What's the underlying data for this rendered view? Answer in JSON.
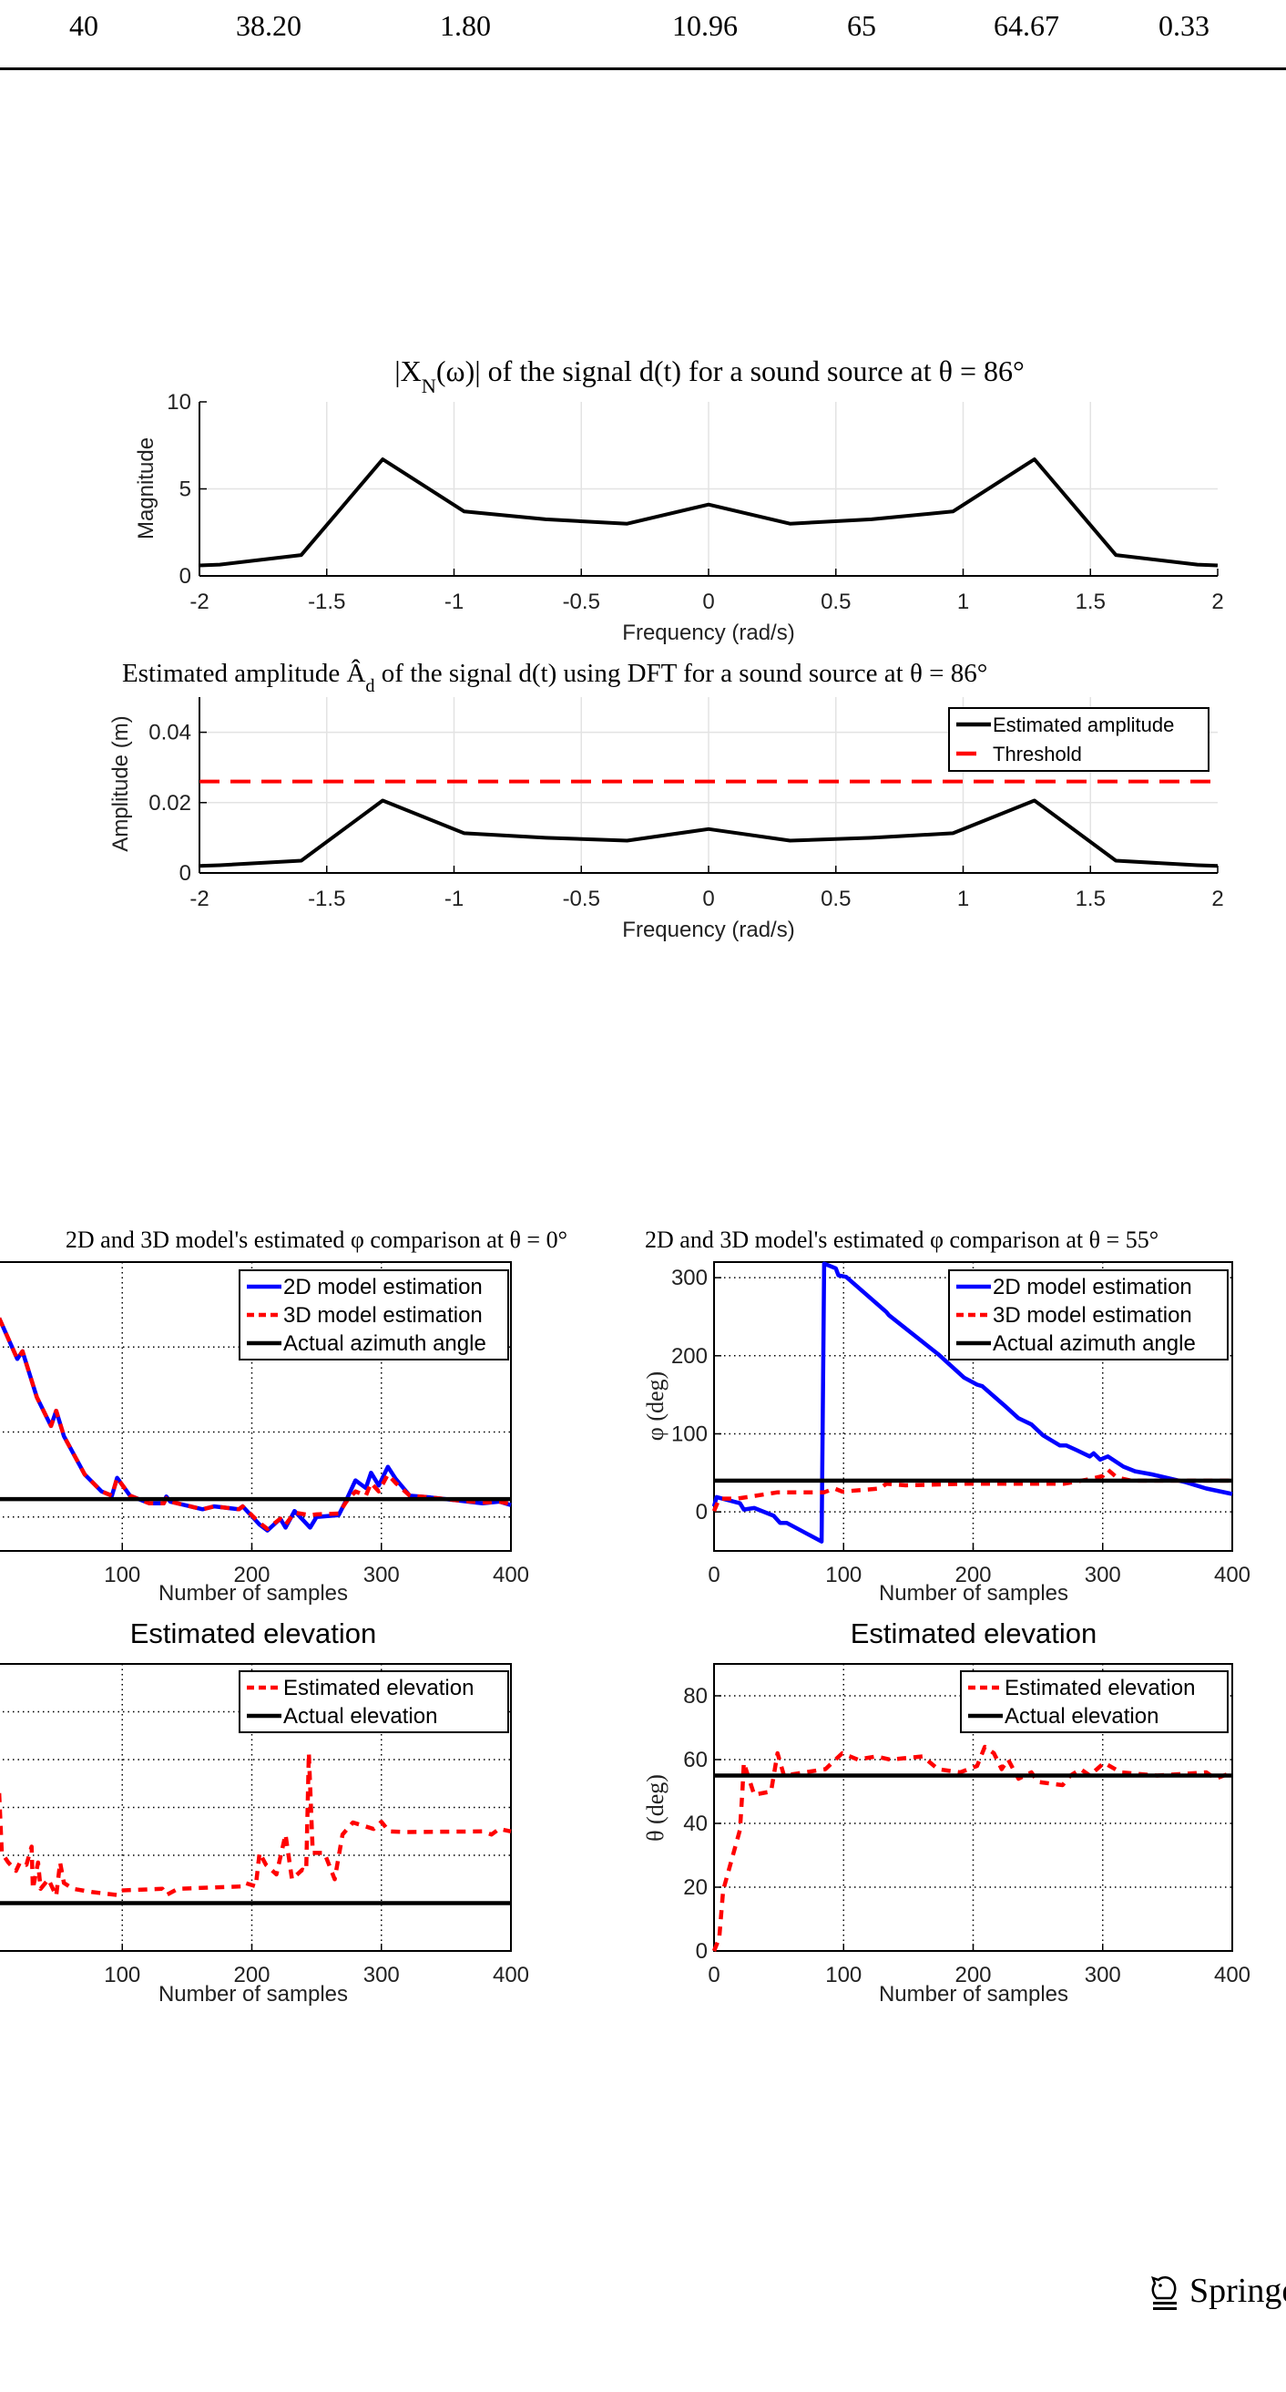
{
  "table": {
    "row": [
      "40",
      "38.20",
      "1.80",
      "10.96",
      "65",
      "64.67",
      "0.33"
    ]
  },
  "publisher": {
    "logo_text": "Springer"
  },
  "chart_data": [
    {
      "type": "line",
      "title": "|X_N(ω)| of the signal d(t) for a sound source at θ = 86°",
      "xlabel": "Frequency (rad/s)",
      "ylabel": "Magnitude",
      "xlim": [
        -2,
        2
      ],
      "ylim": [
        0,
        10
      ],
      "xticks": [
        "-2",
        "-1.5",
        "-1",
        "-0.5",
        "0",
        "0.5",
        "1",
        "1.5",
        "2"
      ],
      "yticks": [
        "0",
        "5",
        "10"
      ],
      "grid": true,
      "legend": null,
      "series": [
        {
          "name": "Magnitude",
          "color": "#000000",
          "style": "solid",
          "x": [
            -2,
            -1.92,
            -1.6,
            -1.28,
            -0.96,
            -0.64,
            -0.32,
            0,
            0.32,
            0.64,
            0.96,
            1.28,
            1.6,
            1.92,
            2
          ],
          "y": [
            0.6,
            0.65,
            1.2,
            6.7,
            3.7,
            3.25,
            3.0,
            4.1,
            3.0,
            3.25,
            3.7,
            6.7,
            1.2,
            0.65,
            0.6
          ]
        }
      ]
    },
    {
      "type": "line",
      "title": "Estimated amplitude Â_d of the signal d(t) using DFT for a sound source at θ = 86°",
      "xlabel": "Frequency (rad/s)",
      "ylabel": "Amplitude (m)",
      "xlim": [
        -2,
        2
      ],
      "ylim": [
        0,
        0.05
      ],
      "xticks": [
        "-2",
        "-1.5",
        "-1",
        "-0.5",
        "0",
        "0.5",
        "1",
        "1.5",
        "2"
      ],
      "yticks": [
        "0",
        "0.02",
        "0.04"
      ],
      "grid": true,
      "legend": "top-right",
      "series": [
        {
          "name": "Estimated amplitude",
          "color": "#000000",
          "style": "solid",
          "x": [
            -2,
            -1.92,
            -1.6,
            -1.28,
            -0.96,
            -0.64,
            -0.32,
            0,
            0.32,
            0.64,
            0.96,
            1.28,
            1.6,
            1.92,
            2
          ],
          "y": [
            0.002,
            0.0022,
            0.0035,
            0.0206,
            0.0113,
            0.01,
            0.0092,
            0.0125,
            0.0092,
            0.01,
            0.0113,
            0.0206,
            0.0035,
            0.0022,
            0.002
          ]
        },
        {
          "name": "Threshold",
          "color": "#ff0000",
          "style": "dashed",
          "x": [
            -2,
            2
          ],
          "y": [
            0.026,
            0.026
          ]
        }
      ]
    },
    {
      "type": "line",
      "title": "2D and 3D model's estimated φ comparison at θ = 0°",
      "xlabel": "Number of samples",
      "ylabel": "",
      "xlim": [
        0,
        400
      ],
      "ylim": [
        -40,
        300
      ],
      "xticks": [
        "100",
        "200",
        "300",
        "400"
      ],
      "ygrid": [
        0,
        100,
        200
      ],
      "grid": true,
      "legend": "top-right",
      "series": [
        {
          "name": "2D model estimation",
          "color": "#0000ff",
          "style": "solid",
          "x": [
            5,
            19,
            23,
            34,
            45,
            49,
            55,
            71,
            84,
            92,
            96,
            106,
            121,
            132,
            134,
            137,
            162,
            171,
            190,
            193,
            206,
            212,
            222,
            226,
            233,
            245,
            250,
            267,
            273,
            280,
            288,
            292,
            298,
            305,
            311,
            322,
            338,
            356,
            378,
            391,
            400
          ],
          "y": [
            234,
            186,
            195,
            141,
            107,
            125,
            95,
            50,
            30,
            25,
            46,
            25,
            16,
            16,
            24,
            18,
            9,
            12.5,
            9,
            12.5,
            -9,
            -16,
            -2,
            -12.5,
            7,
            -12.5,
            0,
            2,
            20,
            43,
            34,
            52,
            37,
            59,
            45,
            25,
            23,
            20,
            16,
            18,
            14
          ]
        },
        {
          "name": "3D model estimation",
          "color": "#ff0000",
          "style": "dashed",
          "x": [
            5,
            19,
            23,
            34,
            45,
            49,
            55,
            71,
            84,
            92,
            96,
            106,
            121,
            132,
            134,
            137,
            162,
            171,
            190,
            193,
            206,
            212,
            222,
            226,
            233,
            245,
            250,
            267,
            273,
            280,
            288,
            292,
            298,
            305,
            311,
            322,
            338,
            356,
            378,
            391,
            400
          ],
          "y": [
            234,
            186,
            195,
            141,
            107,
            125,
            95,
            50,
            30,
            25,
            46,
            25,
            16,
            16,
            22,
            18,
            9,
            12.5,
            9,
            12.5,
            -7,
            -14,
            -2,
            -9,
            5,
            2,
            3,
            4,
            18,
            30,
            25,
            40,
            30,
            50,
            40,
            25,
            23,
            20,
            17,
            18,
            15
          ]
        },
        {
          "name": "Actual azimuth angle",
          "color": "#000000",
          "style": "solid",
          "x": [
            0,
            400
          ],
          "y": [
            21,
            21
          ]
        }
      ]
    },
    {
      "type": "line",
      "title": "2D and 3D model's estimated φ comparison at θ = 55°",
      "xlabel": "Number of samples",
      "ylabel": "φ (deg)",
      "xlim": [
        0,
        400
      ],
      "ylim": [
        -50,
        320
      ],
      "xticks": [
        "0",
        "100",
        "200",
        "300",
        "400"
      ],
      "yticks": [
        "0",
        "100",
        "200",
        "300"
      ],
      "ygrid": [
        0,
        100,
        200,
        300
      ],
      "grid": true,
      "legend": "top-right",
      "series": [
        {
          "name": "2D model estimation",
          "color": "#0000ff",
          "style": "solid",
          "x": [
            0,
            2,
            20,
            23,
            31,
            46,
            51,
            56,
            83,
            85,
            94,
            96,
            102,
            133,
            135,
            173,
            193,
            203,
            207,
            225,
            235,
            245,
            254,
            267,
            272,
            280,
            290,
            293,
            298,
            304,
            316,
            325,
            338,
            364,
            380,
            400
          ],
          "y": [
            7,
            19,
            11,
            3,
            5,
            -5,
            -14,
            -14,
            -38,
            318,
            312,
            303,
            301,
            256,
            252,
            202,
            172,
            163,
            161,
            135,
            120,
            112,
            98,
            85,
            85,
            79,
            71,
            75,
            67,
            71,
            58,
            52,
            48,
            38,
            30,
            23
          ]
        },
        {
          "name": "3D model estimation",
          "color": "#ff0000",
          "style": "dashed",
          "x": [
            0,
            4,
            18,
            49,
            85,
            93,
            99,
            128,
            133,
            148,
            193,
            270,
            290,
            300,
            304,
            311,
            322,
            400
          ],
          "y": [
            1,
            17,
            17,
            25,
            25,
            30,
            26,
            30,
            36,
            34,
            36,
            36,
            42,
            46,
            54,
            44,
            40,
            40
          ]
        },
        {
          "name": "Actual azimuth angle",
          "color": "#000000",
          "style": "solid",
          "x": [
            0,
            400
          ],
          "y": [
            40,
            40
          ]
        }
      ]
    },
    {
      "type": "line",
      "title": "Estimated elevation",
      "xlabel": "Number of samples",
      "ylabel": "",
      "xlim": [
        0,
        400
      ],
      "ylim": [
        -20,
        100
      ],
      "xticks": [
        "100",
        "200",
        "300",
        "400"
      ],
      "ygrid": [
        0,
        20,
        40,
        60,
        80
      ],
      "grid": true,
      "legend": "top-right",
      "series": [
        {
          "name": "Estimated elevation",
          "color": "#ff0000",
          "style": "dashed",
          "x": [
            5,
            7,
            12,
            18,
            21,
            26,
            30,
            31,
            35,
            37,
            43,
            49,
            52,
            55,
            62,
            77,
            96,
            99,
            131,
            134,
            143,
            193,
            195,
            203,
            206,
            211,
            219,
            226,
            231,
            239,
            242,
            244,
            247,
            256,
            264,
            270,
            278,
            294,
            300,
            306,
            319,
            378,
            385,
            391,
            400
          ],
          "y": [
            46,
            21,
            17,
            13.5,
            17,
            16,
            23.6,
            6,
            17,
            6,
            10,
            3,
            17,
            8.4,
            6,
            4.6,
            3.4,
            5.3,
            6,
            3.4,
            6,
            7,
            8.4,
            7,
            21,
            16,
            12,
            28.7,
            10,
            14,
            13.5,
            62.8,
            21,
            21,
            10,
            28.7,
            33.7,
            31,
            34,
            30,
            29.7,
            30,
            28.7,
            31,
            30
          ]
        },
        {
          "name": "Actual elevation",
          "color": "#000000",
          "style": "solid",
          "x": [
            0,
            400
          ],
          "y": [
            0,
            0
          ]
        }
      ]
    },
    {
      "type": "line",
      "title": "Estimated elevation",
      "xlabel": "Number of samples",
      "ylabel": "θ (deg)",
      "xlim": [
        0,
        400
      ],
      "ylim": [
        0,
        90
      ],
      "xticks": [
        "0",
        "100",
        "200",
        "300",
        "400"
      ],
      "yticks": [
        "0",
        "20",
        "40",
        "60",
        "80"
      ],
      "ygrid": [
        20,
        40,
        60,
        80
      ],
      "grid": true,
      "legend": "top-right",
      "series": [
        {
          "name": "Estimated elevation",
          "color": "#ff0000",
          "style": "dashed",
          "x": [
            0,
            4,
            7,
            20,
            22,
            23,
            27,
            31,
            44,
            49,
            54,
            70,
            86,
            99,
            111,
            125,
            136,
            161,
            173,
            190,
            203,
            209,
            216,
            222,
            227,
            235,
            245,
            250,
            269,
            275,
            283,
            290,
            301,
            314,
            342,
            380,
            387,
            400
          ],
          "y": [
            0,
            4,
            19,
            38,
            51,
            59,
            54,
            49,
            50,
            62,
            55,
            56,
            57,
            62,
            60,
            61,
            60,
            61,
            57,
            56,
            58,
            64,
            62,
            57,
            60,
            54,
            56,
            53,
            52,
            55,
            57,
            55,
            59,
            56,
            55,
            56,
            54,
            56
          ]
        },
        {
          "name": "Actual elevation",
          "color": "#000000",
          "style": "solid",
          "x": [
            0,
            400
          ],
          "y": [
            55,
            55
          ]
        }
      ]
    }
  ]
}
